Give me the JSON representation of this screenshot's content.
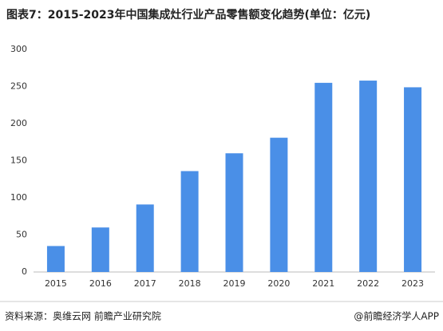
{
  "chart_data": {
    "type": "bar",
    "title": "图表7：2015-2023年中国集成灶行业产品零售额变化趋势(单位：亿元)",
    "categories": [
      "2015",
      "2016",
      "2017",
      "2018",
      "2019",
      "2020",
      "2021",
      "2022",
      "2023"
    ],
    "values": [
      35,
      60,
      91,
      136,
      160,
      181,
      255,
      258,
      249
    ],
    "color": "#4a8fe7",
    "ylim": [
      0,
      300
    ],
    "yticks": [
      0,
      50,
      100,
      150,
      200,
      250,
      300
    ],
    "grid": false,
    "source": "资料来源：奥维云网 前瞻产业研究院",
    "credit": "@前瞻经济学人APP"
  }
}
